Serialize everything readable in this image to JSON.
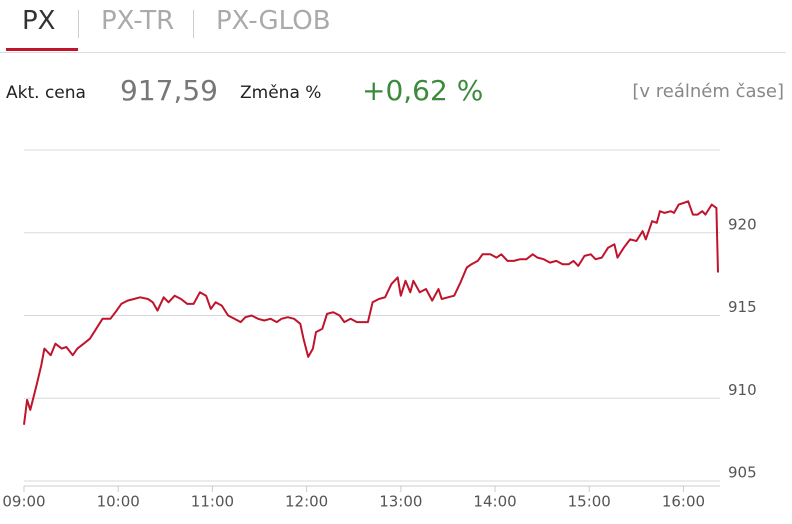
{
  "tabs": [
    "PX",
    "PX-TR",
    "PX-GLOB"
  ],
  "quote": {
    "price_label": "Akt. cena",
    "price": "917,59",
    "change_label": "Změna %",
    "change": "+0,62 %",
    "realtime": "[v reálném čase]"
  },
  "chart_data": {
    "type": "line",
    "x": [
      "09:00",
      "09:02",
      "09:04",
      "09:08",
      "09:11",
      "09:13",
      "09:17",
      "09:20",
      "09:24",
      "09:27",
      "09:31",
      "09:34",
      "09:38",
      "09:42",
      "09:46",
      "09:50",
      "09:55",
      "09:59",
      "10:02",
      "10:06",
      "10:10",
      "10:14",
      "10:19",
      "10:22",
      "10:25",
      "10:29",
      "10:32",
      "10:36",
      "10:40",
      "10:44",
      "10:48",
      "10:52",
      "10:56",
      "10:59",
      "11:02",
      "11:06",
      "11:10",
      "11:14",
      "11:18",
      "11:21",
      "11:25",
      "11:29",
      "11:33",
      "11:37",
      "11:41",
      "11:44",
      "11:48",
      "11:52",
      "11:56",
      "11:58",
      "12:01",
      "12:04",
      "12:06",
      "12:10",
      "12:13",
      "12:17",
      "12:21",
      "12:24",
      "12:28",
      "12:32",
      "12:35",
      "12:39",
      "12:42",
      "12:46",
      "12:50",
      "12:54",
      "12:58",
      "13:00",
      "13:03",
      "13:06",
      "13:08",
      "13:12",
      "13:16",
      "13:20",
      "13:24",
      "13:26",
      "13:30",
      "13:34",
      "13:38",
      "13:42",
      "13:45",
      "13:49",
      "13:52",
      "13:57",
      "14:01",
      "14:04",
      "14:08",
      "14:12",
      "14:16",
      "14:20",
      "14:24",
      "14:27",
      "14:31",
      "14:35",
      "14:39",
      "14:43",
      "14:47",
      "14:50",
      "14:53",
      "14:57",
      "15:01",
      "15:04",
      "15:08",
      "15:12",
      "15:16",
      "15:18",
      "15:22",
      "15:26",
      "15:30",
      "15:34",
      "15:36",
      "15:40",
      "15:43",
      "15:45",
      "15:48",
      "15:52",
      "15:54",
      "15:57",
      "16:00",
      "16:03",
      "16:06",
      "16:09",
      "16:12",
      "16:14",
      "16:18",
      "16:21",
      "16:22"
    ],
    "series": [
      {
        "name": "PX",
        "color": "#c0142c",
        "values": [
          908.4,
          909.9,
          909.3,
          910.8,
          912.0,
          913.0,
          912.6,
          913.3,
          913.0,
          913.1,
          912.6,
          913.0,
          913.3,
          913.6,
          914.2,
          914.8,
          914.8,
          915.3,
          915.7,
          915.9,
          916.0,
          916.1,
          916.0,
          915.8,
          915.3,
          916.1,
          915.8,
          916.2,
          916.0,
          915.7,
          915.7,
          916.4,
          916.2,
          915.4,
          915.8,
          915.6,
          915.0,
          914.8,
          914.6,
          914.9,
          915.0,
          914.8,
          914.7,
          914.8,
          914.6,
          914.8,
          914.9,
          914.8,
          914.5,
          913.6,
          912.5,
          913.0,
          914.0,
          914.2,
          915.1,
          915.2,
          915.0,
          914.6,
          914.8,
          914.6,
          914.6,
          914.6,
          915.8,
          916.0,
          916.1,
          916.9,
          917.3,
          916.2,
          917.1,
          916.4,
          917.1,
          916.4,
          916.6,
          915.9,
          916.6,
          916.0,
          916.1,
          916.2,
          917.0,
          917.9,
          918.1,
          918.3,
          918.7,
          918.7,
          918.5,
          918.7,
          918.3,
          918.3,
          918.4,
          918.4,
          918.7,
          918.5,
          918.4,
          918.2,
          918.3,
          918.1,
          918.1,
          918.3,
          918.0,
          918.6,
          918.7,
          918.4,
          918.5,
          919.1,
          919.3,
          918.5,
          919.1,
          919.6,
          919.5,
          920.1,
          919.6,
          920.7,
          920.6,
          921.3,
          921.2,
          921.3,
          921.2,
          921.7,
          921.8,
          921.9,
          921.1,
          921.1,
          921.3,
          921.1,
          921.7,
          921.5,
          917.6
        ]
      }
    ],
    "xlim": [
      "09:00",
      "16:22"
    ],
    "xticks": [
      "09:00",
      "10:00",
      "11:00",
      "12:00",
      "13:00",
      "14:00",
      "15:00",
      "16:00"
    ],
    "ylim": [
      904.7,
      925
    ],
    "yticks": [
      905,
      910,
      915,
      920
    ],
    "grid": true
  }
}
